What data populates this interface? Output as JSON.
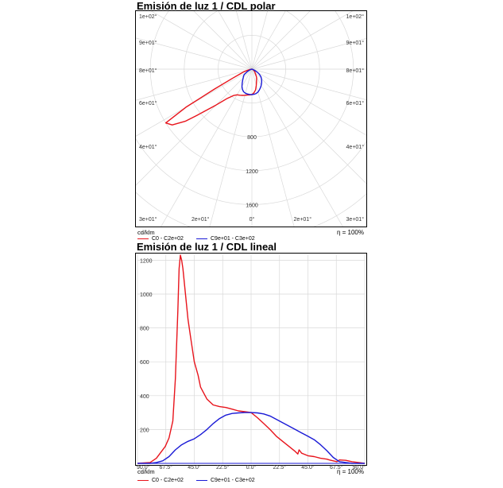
{
  "chart_data": [
    {
      "type": "polar",
      "title": "Emisión de luz 1 / CDL polar",
      "unit_label": "cd/klm",
      "efficiency_label": "η = 100%",
      "radial_tick_labels": [
        "800",
        "1200",
        "1600"
      ],
      "radial_ticks": [
        800,
        1200,
        1600
      ],
      "r_max": 2000,
      "angle_labels_left": [
        "1e+02°",
        "9e+01°",
        "8e+01°",
        "6e+01°",
        "4e+01°",
        "3e+01°",
        "2e+01°"
      ],
      "angle_labels_right": [
        "1e+02°",
        "9e+01°",
        "8e+01°",
        "6e+01°",
        "4e+01°",
        "3e+01°",
        "2e+01°"
      ],
      "angle_label_bottom": "0°",
      "series": [
        {
          "name": "C0 - C2e+02",
          "color": "#e8141c",
          "angles_deg": [
            -180,
            -150,
            -120,
            -100,
            -90,
            -80,
            -75,
            -72,
            -68,
            -65,
            -62,
            -60,
            -58,
            -55,
            -52,
            -50,
            -45,
            -40,
            -35,
            -30,
            -25,
            -20,
            -15,
            -10,
            -5,
            0,
            5,
            10,
            15,
            20,
            25,
            30,
            35,
            40,
            45,
            50,
            60,
            70,
            80,
            90,
            100,
            120,
            150,
            180
          ],
          "values": [
            0,
            0,
            0,
            0,
            5,
            30,
            60,
            100,
            150,
            250,
            500,
            900,
            1200,
            1150,
            1000,
            850,
            600,
            450,
            380,
            350,
            340,
            330,
            320,
            310,
            305,
            300,
            280,
            250,
            200,
            160,
            130,
            110,
            80,
            60,
            50,
            40,
            20,
            10,
            5,
            0,
            0,
            0,
            0,
            0
          ]
        },
        {
          "name": "C9e+01 - C3e+02",
          "color": "#1a1ad6",
          "angles_deg": [
            -180,
            -150,
            -120,
            -100,
            -90,
            -80,
            -75,
            -70,
            -65,
            -60,
            -55,
            -50,
            -45,
            -40,
            -35,
            -30,
            -25,
            -20,
            -15,
            -10,
            -5,
            0,
            5,
            10,
            15,
            20,
            25,
            30,
            35,
            40,
            45,
            50,
            55,
            60,
            65,
            70,
            75,
            80,
            90,
            100,
            120,
            150,
            180
          ],
          "values": [
            0,
            0,
            0,
            0,
            0,
            5,
            10,
            20,
            40,
            70,
            110,
            130,
            145,
            170,
            200,
            235,
            265,
            285,
            295,
            298,
            300,
            300,
            298,
            292,
            280,
            260,
            240,
            220,
            200,
            180,
            160,
            140,
            110,
            80,
            40,
            15,
            5,
            0,
            0,
            0,
            0,
            0,
            0
          ]
        }
      ]
    },
    {
      "type": "line",
      "title": "Emisión de luz 1 / CDL lineal",
      "unit_label": "cd/klm",
      "efficiency_label": "η = 100%",
      "x_tick_labels": [
        "90.0°",
        "67.5°",
        "45.0°",
        "22.5°",
        "0.0°",
        "22.5°",
        "45.0°",
        "67.5°",
        "90.0°"
      ],
      "x_ticks": [
        -90,
        -67.5,
        -45,
        -22.5,
        0,
        22.5,
        45,
        67.5,
        90
      ],
      "y_tick_labels": [
        "200",
        "400",
        "600",
        "800",
        "1000",
        "1200"
      ],
      "y_ticks": [
        200,
        400,
        600,
        800,
        1000,
        1200
      ],
      "xlim": [
        -90,
        90
      ],
      "ylim": [
        0,
        1230
      ],
      "series": [
        {
          "name": "C0 - C2e+02",
          "color": "#e8141c",
          "x": [
            -90,
            -80,
            -75,
            -72,
            -68,
            -65,
            -62,
            -60,
            -58,
            -57,
            -56,
            -55,
            -54,
            -52,
            -50,
            -48,
            -45,
            -42,
            -40,
            -35,
            -30,
            -25,
            -20,
            -15,
            -10,
            -5,
            0,
            5,
            10,
            15,
            20,
            25,
            30,
            35,
            37,
            38,
            40,
            45,
            50,
            55,
            60,
            62,
            65,
            68,
            70,
            75,
            80,
            85,
            90
          ],
          "y": [
            0,
            5,
            30,
            60,
            100,
            150,
            250,
            500,
            900,
            1150,
            1230,
            1200,
            1150,
            1000,
            850,
            750,
            600,
            520,
            450,
            380,
            345,
            335,
            330,
            320,
            310,
            305,
            300,
            270,
            235,
            200,
            160,
            130,
            100,
            70,
            55,
            80,
            60,
            45,
            40,
            30,
            25,
            20,
            15,
            10,
            20,
            18,
            10,
            5,
            0
          ]
        },
        {
          "name": "C9e+01 - C3e+02",
          "color": "#1a1ad6",
          "x": [
            -90,
            -80,
            -75,
            -70,
            -65,
            -60,
            -55,
            -50,
            -45,
            -40,
            -35,
            -30,
            -25,
            -20,
            -15,
            -10,
            -5,
            0,
            5,
            10,
            15,
            20,
            25,
            30,
            35,
            40,
            45,
            50,
            55,
            60,
            65,
            70,
            75,
            80,
            90
          ],
          "y": [
            0,
            0,
            5,
            15,
            40,
            80,
            110,
            130,
            145,
            170,
            200,
            235,
            265,
            285,
            295,
            298,
            300,
            300,
            298,
            292,
            280,
            260,
            240,
            220,
            200,
            180,
            160,
            140,
            110,
            75,
            35,
            10,
            5,
            0,
            0
          ]
        }
      ]
    }
  ]
}
